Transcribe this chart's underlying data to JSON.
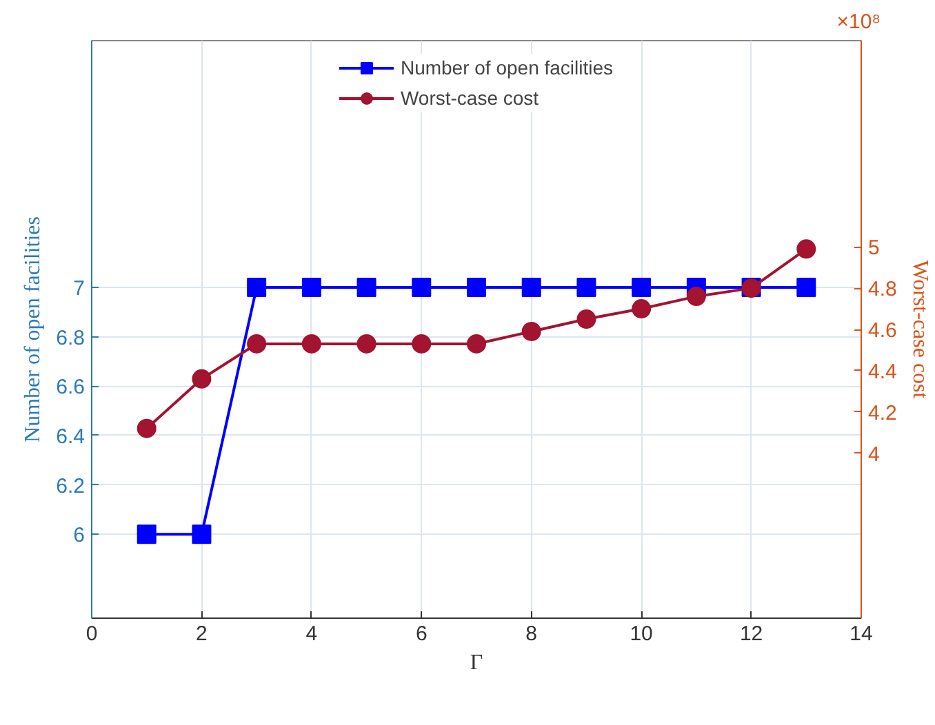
{
  "chart_data": {
    "type": "line",
    "xlabel": "Γ",
    "ylabel": "Number of open facilities",
    "y2label": "Worst-case cost",
    "annotations": [
      "×10⁸"
    ],
    "x": [
      1,
      2,
      3,
      4,
      5,
      6,
      7,
      8,
      9,
      10,
      11,
      12,
      13
    ],
    "series": [
      {
        "name": "Number of open facilities",
        "color": "#0000ff",
        "marker": "square",
        "values": [
          6,
          6,
          7,
          7,
          7,
          7,
          7,
          7,
          7,
          7,
          7,
          7,
          7
        ]
      },
      {
        "name": "Worst-case cost",
        "color": "#a2142f",
        "marker": "circle",
        "axis": "y2",
        "values": [
          4.12,
          4.36,
          4.53,
          4.53,
          4.53,
          4.53,
          4.53,
          4.59,
          4.65,
          4.7,
          4.76,
          4.8,
          4.99
        ]
      }
    ],
    "xlim": [
      0,
      14
    ],
    "xticks": [
      0,
      2,
      4,
      6,
      8,
      10,
      12,
      14
    ],
    "ylim": [
      5.66,
      8
    ],
    "yticks": [
      6,
      6.2,
      6.4,
      6.6,
      6.8,
      7
    ],
    "y2lim": [
      3.2,
      6.0
    ],
    "y2ticks": [
      4,
      4.2,
      4.4,
      4.6,
      4.8,
      5
    ],
    "grid": true,
    "legend": "top",
    "line_style": "solid"
  }
}
